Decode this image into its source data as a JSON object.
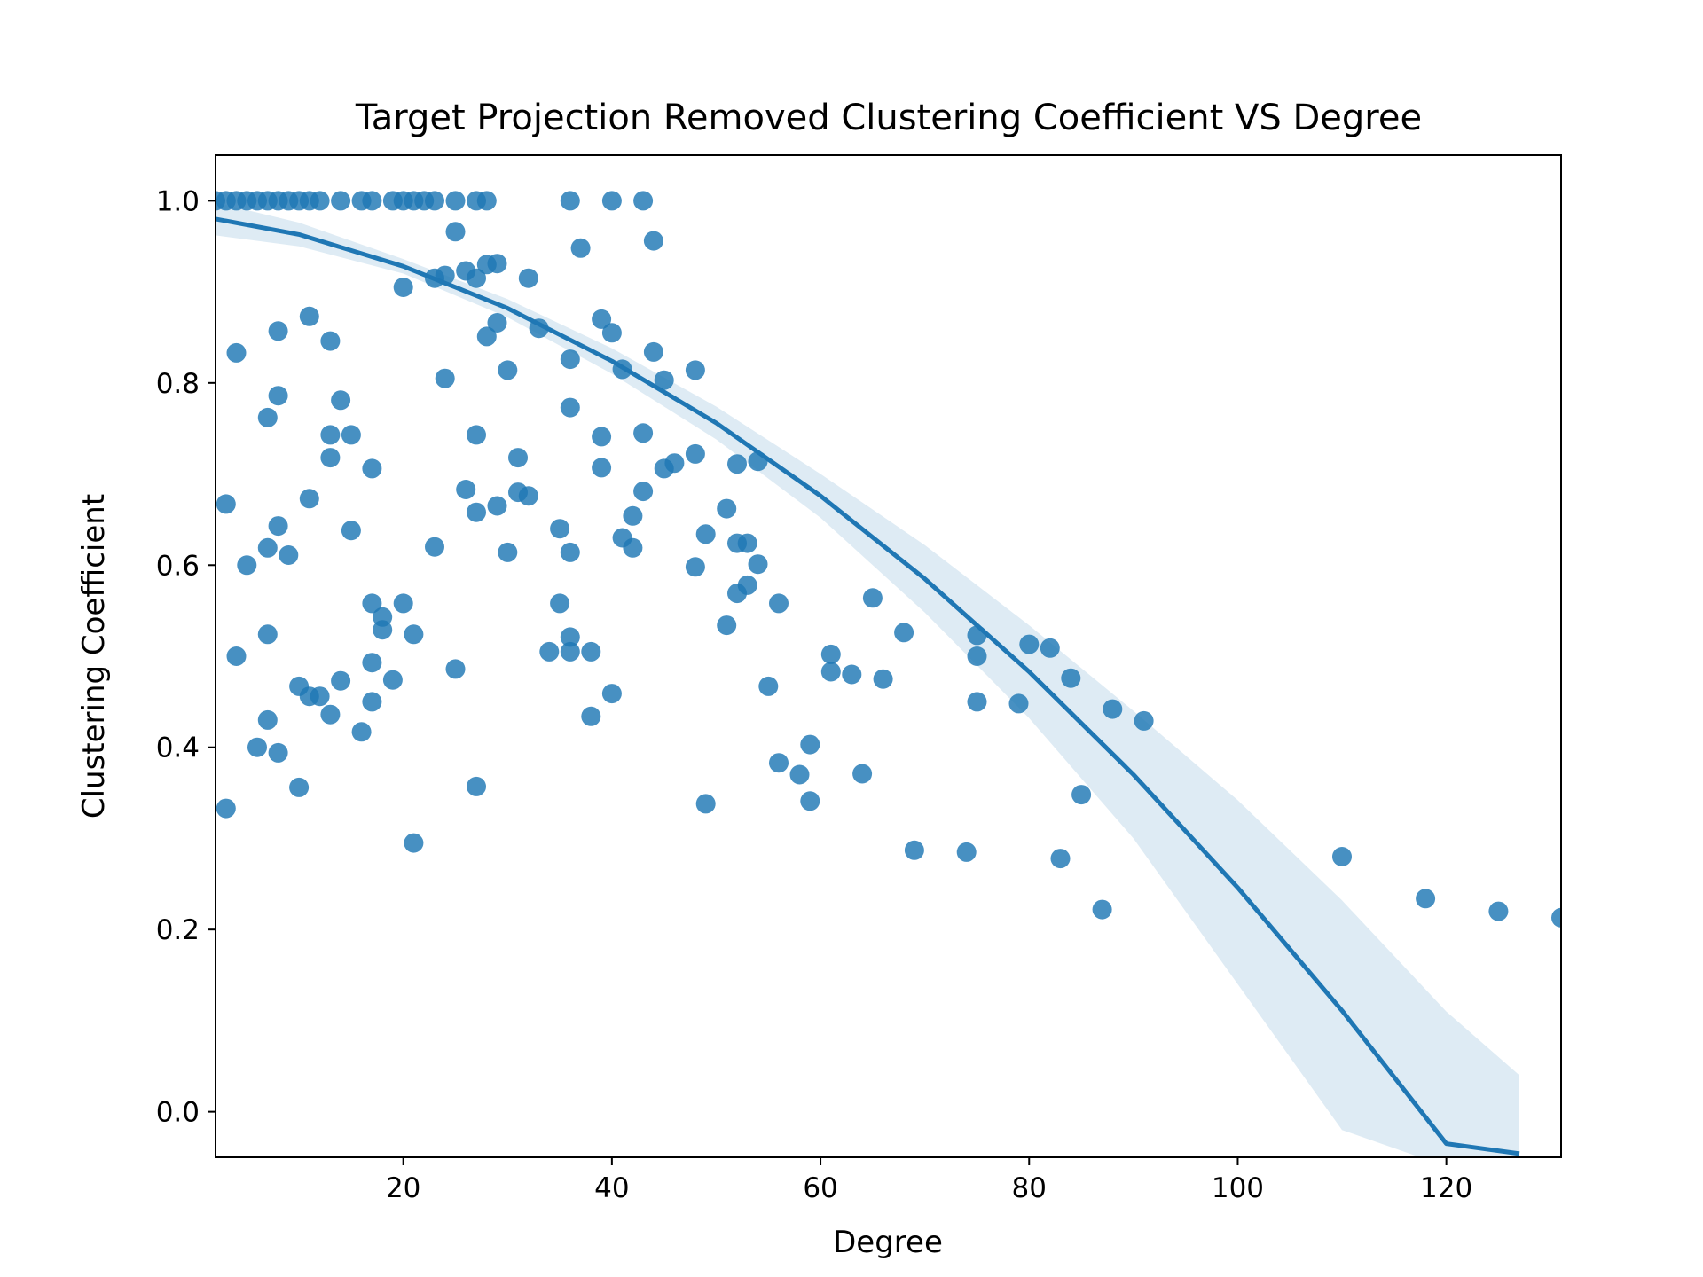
{
  "chart_data": {
    "type": "scatter",
    "title": "Target Projection Removed Clustering Coefficient VS Degree",
    "xlabel": "Degree",
    "ylabel": "Clustering Coefficient",
    "xlim": [
      2,
      131
    ],
    "ylim": [
      -0.05,
      1.05
    ],
    "xticks": [
      20,
      40,
      60,
      80,
      100,
      120
    ],
    "yticks": [
      0.0,
      0.2,
      0.4,
      0.6,
      0.8,
      1.0
    ],
    "xtick_labels": [
      "20",
      "40",
      "60",
      "80",
      "100",
      "120"
    ],
    "ytick_labels": [
      "0.0",
      "0.2",
      "0.4",
      "0.6",
      "0.8",
      "1.0"
    ],
    "grid": false,
    "legend": "none",
    "colors": {
      "points": "#1f77b4",
      "line": "#1f77b4",
      "band": "#1f77b4"
    },
    "points": [
      [
        2,
        1.0
      ],
      [
        3,
        1.0
      ],
      [
        4,
        1.0
      ],
      [
        5,
        1.0
      ],
      [
        6,
        1.0
      ],
      [
        7,
        1.0
      ],
      [
        8,
        1.0
      ],
      [
        9,
        1.0
      ],
      [
        10,
        1.0
      ],
      [
        11,
        1.0
      ],
      [
        12,
        1.0
      ],
      [
        14,
        1.0
      ],
      [
        16,
        1.0
      ],
      [
        17,
        1.0
      ],
      [
        19,
        1.0
      ],
      [
        20,
        1.0
      ],
      [
        21,
        1.0
      ],
      [
        22,
        1.0
      ],
      [
        23,
        1.0
      ],
      [
        25,
        1.0
      ],
      [
        27,
        1.0
      ],
      [
        28,
        1.0
      ],
      [
        36,
        1.0
      ],
      [
        40,
        1.0
      ],
      [
        43,
        1.0
      ],
      [
        25,
        0.966
      ],
      [
        44,
        0.956
      ],
      [
        37,
        0.948
      ],
      [
        26,
        0.923
      ],
      [
        28,
        0.93
      ],
      [
        29,
        0.931
      ],
      [
        23,
        0.915
      ],
      [
        24,
        0.918
      ],
      [
        27,
        0.915
      ],
      [
        32,
        0.915
      ],
      [
        20,
        0.905
      ],
      [
        11,
        0.873
      ],
      [
        29,
        0.866
      ],
      [
        39,
        0.87
      ],
      [
        33,
        0.86
      ],
      [
        40,
        0.855
      ],
      [
        8,
        0.857
      ],
      [
        28,
        0.851
      ],
      [
        13,
        0.846
      ],
      [
        4,
        0.833
      ],
      [
        44,
        0.834
      ],
      [
        36,
        0.826
      ],
      [
        41,
        0.815
      ],
      [
        30,
        0.814
      ],
      [
        48,
        0.814
      ],
      [
        24,
        0.805
      ],
      [
        45,
        0.803
      ],
      [
        8,
        0.786
      ],
      [
        14,
        0.781
      ],
      [
        36,
        0.773
      ],
      [
        7,
        0.762
      ],
      [
        13,
        0.743
      ],
      [
        15,
        0.743
      ],
      [
        27,
        0.743
      ],
      [
        39,
        0.741
      ],
      [
        43,
        0.745
      ],
      [
        13,
        0.718
      ],
      [
        31,
        0.718
      ],
      [
        48,
        0.722
      ],
      [
        46,
        0.712
      ],
      [
        52,
        0.711
      ],
      [
        45,
        0.706
      ],
      [
        54,
        0.714
      ],
      [
        17,
        0.706
      ],
      [
        39,
        0.707
      ],
      [
        26,
        0.683
      ],
      [
        31,
        0.68
      ],
      [
        43,
        0.681
      ],
      [
        32,
        0.676
      ],
      [
        11,
        0.673
      ],
      [
        3,
        0.667
      ],
      [
        29,
        0.665
      ],
      [
        27,
        0.658
      ],
      [
        42,
        0.654
      ],
      [
        51,
        0.662
      ],
      [
        8,
        0.643
      ],
      [
        15,
        0.638
      ],
      [
        35,
        0.64
      ],
      [
        49,
        0.634
      ],
      [
        41,
        0.63
      ],
      [
        52,
        0.624
      ],
      [
        53,
        0.624
      ],
      [
        7,
        0.619
      ],
      [
        42,
        0.619
      ],
      [
        23,
        0.62
      ],
      [
        30,
        0.614
      ],
      [
        36,
        0.614
      ],
      [
        9,
        0.611
      ],
      [
        5,
        0.6
      ],
      [
        48,
        0.598
      ],
      [
        54,
        0.601
      ],
      [
        53,
        0.578
      ],
      [
        52,
        0.569
      ],
      [
        65,
        0.564
      ],
      [
        17,
        0.558
      ],
      [
        20,
        0.558
      ],
      [
        35,
        0.558
      ],
      [
        56,
        0.558
      ],
      [
        18,
        0.543
      ],
      [
        51,
        0.534
      ],
      [
        18,
        0.529
      ],
      [
        7,
        0.524
      ],
      [
        21,
        0.524
      ],
      [
        36,
        0.521
      ],
      [
        68,
        0.526
      ],
      [
        75,
        0.523
      ],
      [
        80,
        0.513
      ],
      [
        82,
        0.509
      ],
      [
        34,
        0.505
      ],
      [
        36,
        0.505
      ],
      [
        38,
        0.505
      ],
      [
        61,
        0.502
      ],
      [
        75,
        0.5
      ],
      [
        4,
        0.5
      ],
      [
        17,
        0.493
      ],
      [
        25,
        0.486
      ],
      [
        61,
        0.483
      ],
      [
        63,
        0.48
      ],
      [
        84,
        0.476
      ],
      [
        66,
        0.475
      ],
      [
        14,
        0.473
      ],
      [
        19,
        0.474
      ],
      [
        10,
        0.467
      ],
      [
        55,
        0.467
      ],
      [
        40,
        0.459
      ],
      [
        11,
        0.456
      ],
      [
        12,
        0.456
      ],
      [
        17,
        0.45
      ],
      [
        75,
        0.45
      ],
      [
        79,
        0.448
      ],
      [
        88,
        0.442
      ],
      [
        13,
        0.436
      ],
      [
        38,
        0.434
      ],
      [
        7,
        0.43
      ],
      [
        91,
        0.429
      ],
      [
        16,
        0.417
      ],
      [
        59,
        0.403
      ],
      [
        6,
        0.4
      ],
      [
        8,
        0.394
      ],
      [
        56,
        0.383
      ],
      [
        58,
        0.37
      ],
      [
        64,
        0.371
      ],
      [
        10,
        0.356
      ],
      [
        27,
        0.357
      ],
      [
        85,
        0.348
      ],
      [
        59,
        0.341
      ],
      [
        49,
        0.338
      ],
      [
        3,
        0.333
      ],
      [
        21,
        0.295
      ],
      [
        69,
        0.287
      ],
      [
        74,
        0.285
      ],
      [
        110,
        0.28
      ],
      [
        83,
        0.278
      ],
      [
        118,
        0.234
      ],
      [
        87,
        0.222
      ],
      [
        125,
        0.22
      ],
      [
        131,
        0.213
      ]
    ],
    "fit": {
      "type": "quadratic",
      "x": [
        2,
        10,
        20,
        30,
        40,
        50,
        60,
        70,
        80,
        90,
        100,
        110,
        120,
        127
      ],
      "y": [
        0.98,
        0.963,
        0.928,
        0.882,
        0.824,
        0.756,
        0.676,
        0.585,
        0.483,
        0.37,
        0.246,
        0.111,
        -0.035,
        -0.046
      ],
      "ci_lower": [
        0.962,
        0.95,
        0.92,
        0.872,
        0.81,
        0.738,
        0.652,
        0.548,
        0.432,
        0.3,
        0.14,
        -0.02,
        -0.06,
        -0.06
      ],
      "ci_upper": [
        0.998,
        0.976,
        0.936,
        0.892,
        0.838,
        0.774,
        0.7,
        0.622,
        0.534,
        0.44,
        0.342,
        0.232,
        0.11,
        0.04
      ]
    }
  }
}
